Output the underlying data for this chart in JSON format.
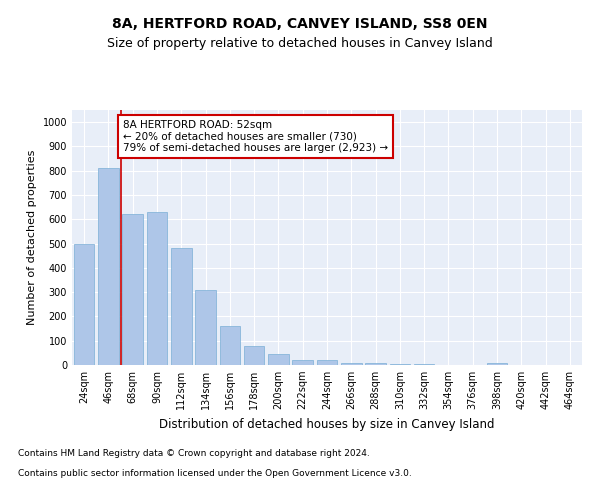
{
  "title1": "8A, HERTFORD ROAD, CANVEY ISLAND, SS8 0EN",
  "title2": "Size of property relative to detached houses in Canvey Island",
  "xlabel": "Distribution of detached houses by size in Canvey Island",
  "ylabel": "Number of detached properties",
  "categories": [
    "24sqm",
    "46sqm",
    "68sqm",
    "90sqm",
    "112sqm",
    "134sqm",
    "156sqm",
    "178sqm",
    "200sqm",
    "222sqm",
    "244sqm",
    "266sqm",
    "288sqm",
    "310sqm",
    "332sqm",
    "354sqm",
    "376sqm",
    "398sqm",
    "420sqm",
    "442sqm",
    "464sqm"
  ],
  "values": [
    500,
    810,
    620,
    630,
    480,
    310,
    160,
    80,
    45,
    22,
    20,
    10,
    10,
    5,
    3,
    2,
    2,
    8,
    2,
    2,
    0
  ],
  "bar_color": "#aec6e8",
  "bar_edge_color": "#7aaed6",
  "vline_color": "#cc0000",
  "annotation_text": "8A HERTFORD ROAD: 52sqm\n← 20% of detached houses are smaller (730)\n79% of semi-detached houses are larger (2,923) →",
  "annotation_box_color": "#ffffff",
  "annotation_box_edge_color": "#cc0000",
  "ylim": [
    0,
    1050
  ],
  "yticks": [
    0,
    100,
    200,
    300,
    400,
    500,
    600,
    700,
    800,
    900,
    1000
  ],
  "footnote1": "Contains HM Land Registry data © Crown copyright and database right 2024.",
  "footnote2": "Contains public sector information licensed under the Open Government Licence v3.0.",
  "background_color": "#e8eef8",
  "grid_color": "#ffffff",
  "fig_background": "#ffffff",
  "title1_fontsize": 10,
  "title2_fontsize": 9,
  "xlabel_fontsize": 8.5,
  "ylabel_fontsize": 8,
  "tick_fontsize": 7,
  "annotation_fontsize": 7.5,
  "footnote_fontsize": 6.5
}
